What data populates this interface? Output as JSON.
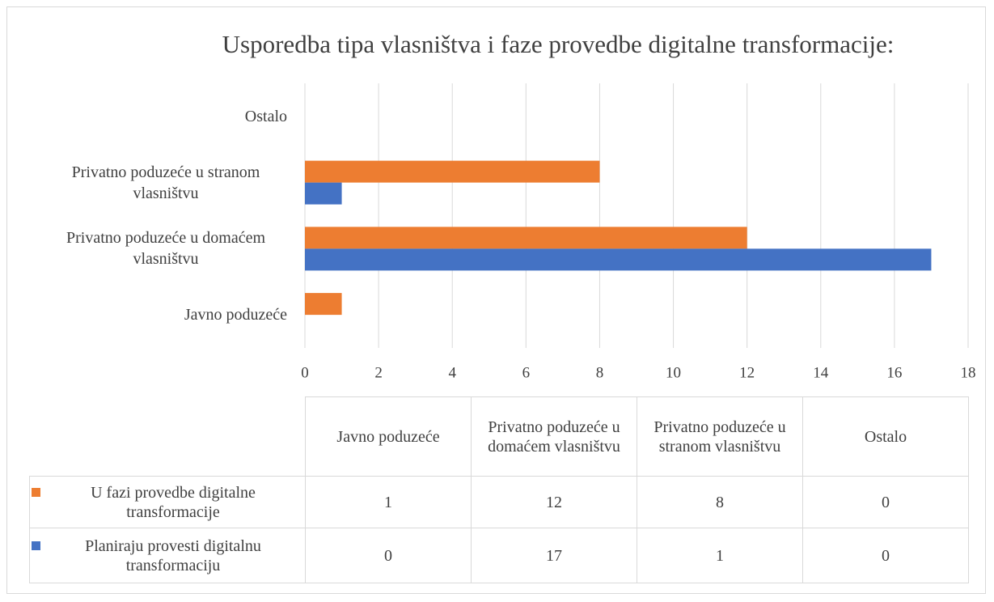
{
  "chart_data": {
    "type": "bar",
    "orientation": "horizontal",
    "title": "Usporedba tipa vlasništva i faze provedbe digitalne transformacije:",
    "categories": [
      "Javno poduzeće",
      "Privatno poduzeće u domaćem vlasništvu",
      "Privatno poduzeće u stranom vlasništvu",
      "Ostalo"
    ],
    "series": [
      {
        "name": "U fazi provedbe digitalne transformacije",
        "color": "#ed7d31",
        "values": [
          1,
          12,
          8,
          0
        ]
      },
      {
        "name": "Planiraju provesti digitalnu transformaciju",
        "color": "#4472c4",
        "values": [
          0,
          17,
          1,
          0
        ]
      }
    ],
    "xlim": [
      0,
      18
    ],
    "xticks": [
      0,
      2,
      4,
      6,
      8,
      10,
      12,
      14,
      16,
      18
    ],
    "grid": true,
    "data_table": true
  }
}
